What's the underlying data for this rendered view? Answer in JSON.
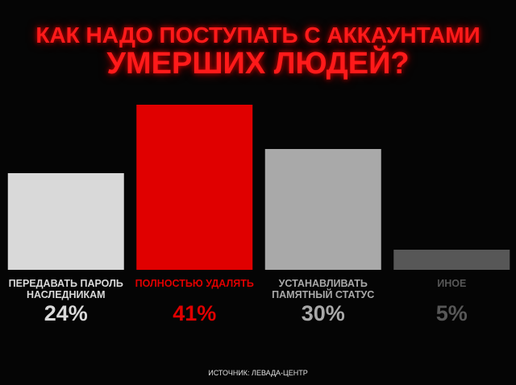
{
  "chart_data": {
    "type": "bar",
    "title": [
      "КАК НАДО ПОСТУПАТЬ С АККАУНТАМИ",
      "УМЕРШИХ ЛЮДЕЙ?"
    ],
    "categories": [
      "ПЕРЕДАВАТЬ ПАРОЛЬ НАСЛЕДНИКАМ",
      "ПОЛНОСТЬЮ УДАЛЯТЬ",
      "УСТАНАВЛИВАТЬ ПАМЯТНЫЙ СТАТУС",
      "ИНОЕ"
    ],
    "values": [
      24,
      41,
      30,
      5
    ],
    "value_labels": [
      "24%",
      "41%",
      "30%",
      "5%"
    ],
    "colors": [
      "#d9d9d9",
      "#e00000",
      "#a9a9a9",
      "#575757"
    ],
    "ylim": [
      0,
      41
    ],
    "source": "ИСТОЧНИК: ЛЕВАДА-ЦЕНТР"
  }
}
